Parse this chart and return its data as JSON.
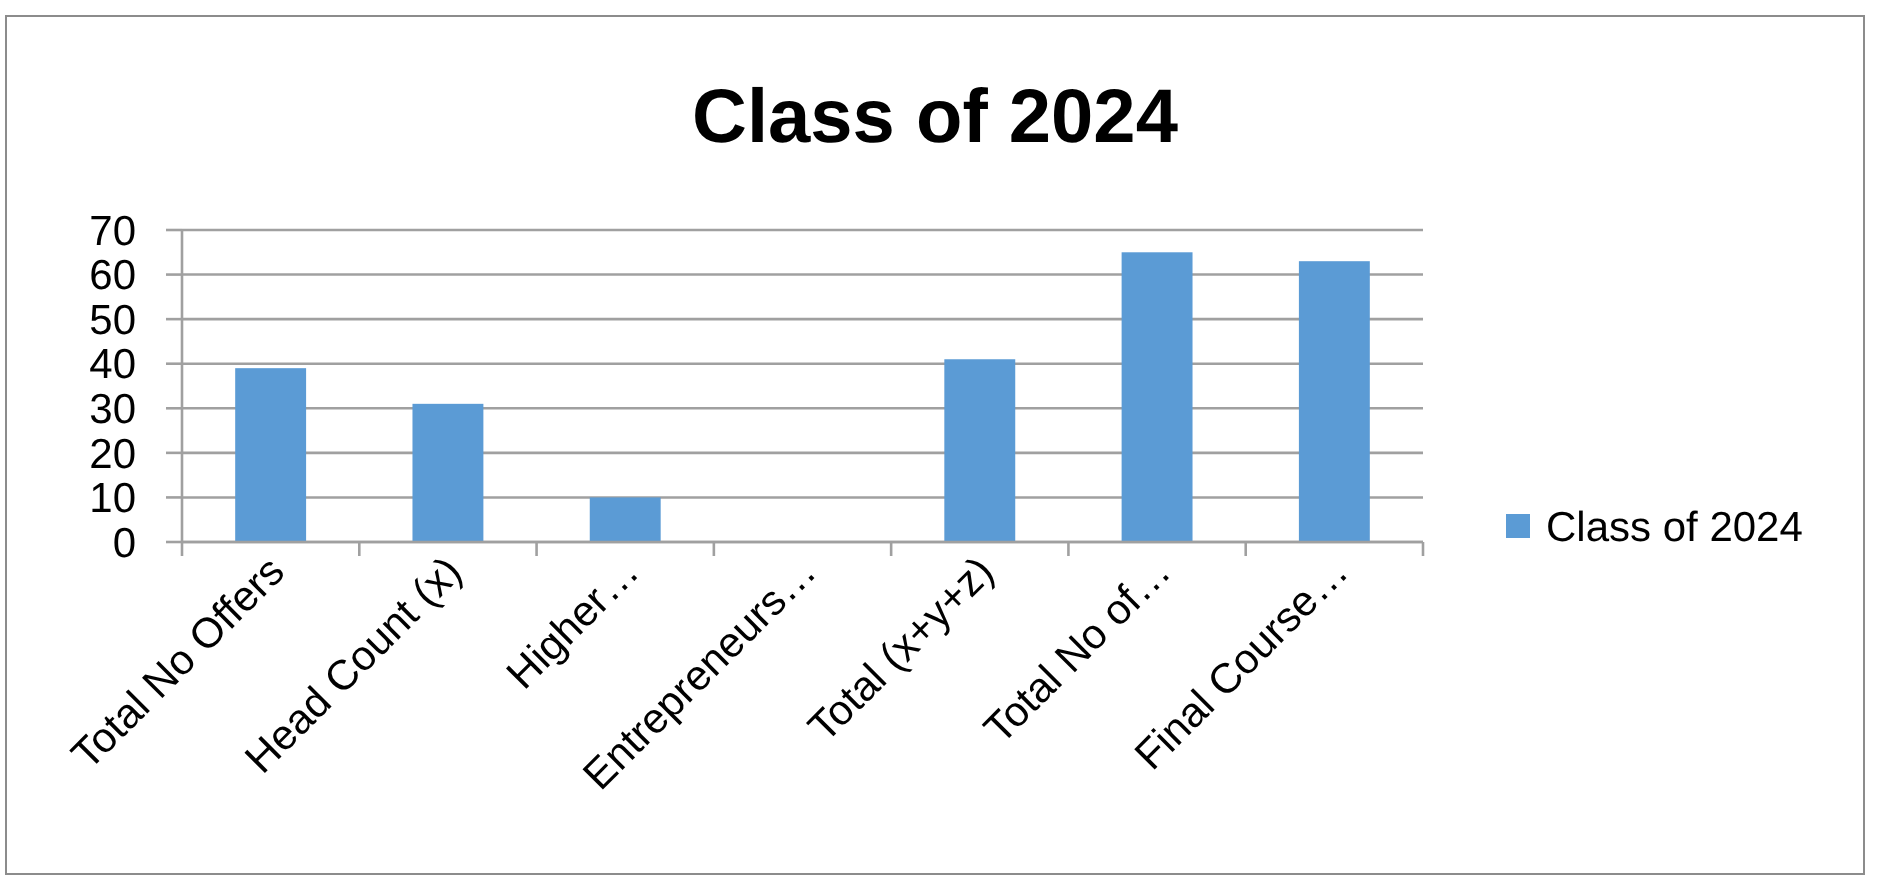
{
  "chart_data": {
    "type": "bar",
    "title": "Class of 2024",
    "categories": [
      "Total No Offers",
      "Head Count (x)",
      "Higher…",
      "Entrepreneurs…",
      "Total (x+y+z)",
      "Total No of…",
      "Final Course…"
    ],
    "series": [
      {
        "name": "Class of 2024",
        "color": "#5b9bd5",
        "values": [
          39,
          31,
          10,
          0,
          41,
          65,
          63
        ]
      }
    ],
    "ylim": [
      0,
      70
    ],
    "yticks": [
      0,
      10,
      20,
      30,
      40,
      50,
      60,
      70
    ],
    "grid": "y",
    "legend": "right"
  }
}
